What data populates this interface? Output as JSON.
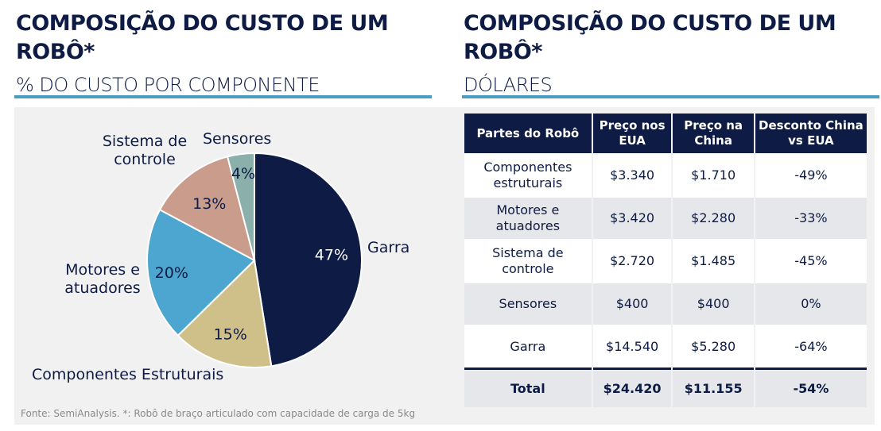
{
  "left": {
    "title": "COMPOSIÇÃO DO CUSTO DE UM ROBÔ*",
    "subtitle": "% DO CUSTO POR COMPONENTE"
  },
  "right": {
    "title": "COMPOSIÇÃO DO CUSTO DE UM ROBÔ*",
    "subtitle": "DÓLARES"
  },
  "footnote": "Fonte: SemiAnalysis. *: Robô de braço articulado com capacidade  de carga de 5kg",
  "chart_data": {
    "type": "pie",
    "categories": [
      "Garra",
      "Componentes Estruturais",
      "Motores e atuadores",
      "Sistema de controle",
      "Sensores"
    ],
    "values": [
      47,
      15,
      20,
      13,
      4
    ],
    "value_labels": [
      "47%",
      "15%",
      "20%",
      "13%",
      "4%"
    ],
    "colors": [
      "#0d1b45",
      "#cfc08a",
      "#4da6cf",
      "#c99c8c",
      "#8bb0ab"
    ]
  },
  "table": {
    "headers": [
      "Partes do Robô",
      "Preço nos EUA",
      "Preço na China",
      "Desconto China vs EUA"
    ],
    "rows": [
      [
        "Componentes estruturais",
        "$3.340",
        "$1.710",
        "-49%"
      ],
      [
        "Motores e atuadores",
        "$3.420",
        "$2.280",
        "-33%"
      ],
      [
        "Sistema de controle",
        "$2.720",
        "$1.485",
        "-45%"
      ],
      [
        "Sensores",
        "$400",
        "$400",
        "0%"
      ],
      [
        "Garra",
        "$14.540",
        "$5.280",
        "-64%"
      ]
    ],
    "total": [
      "Total",
      "$24.420",
      "$11.155",
      "-54%"
    ]
  }
}
